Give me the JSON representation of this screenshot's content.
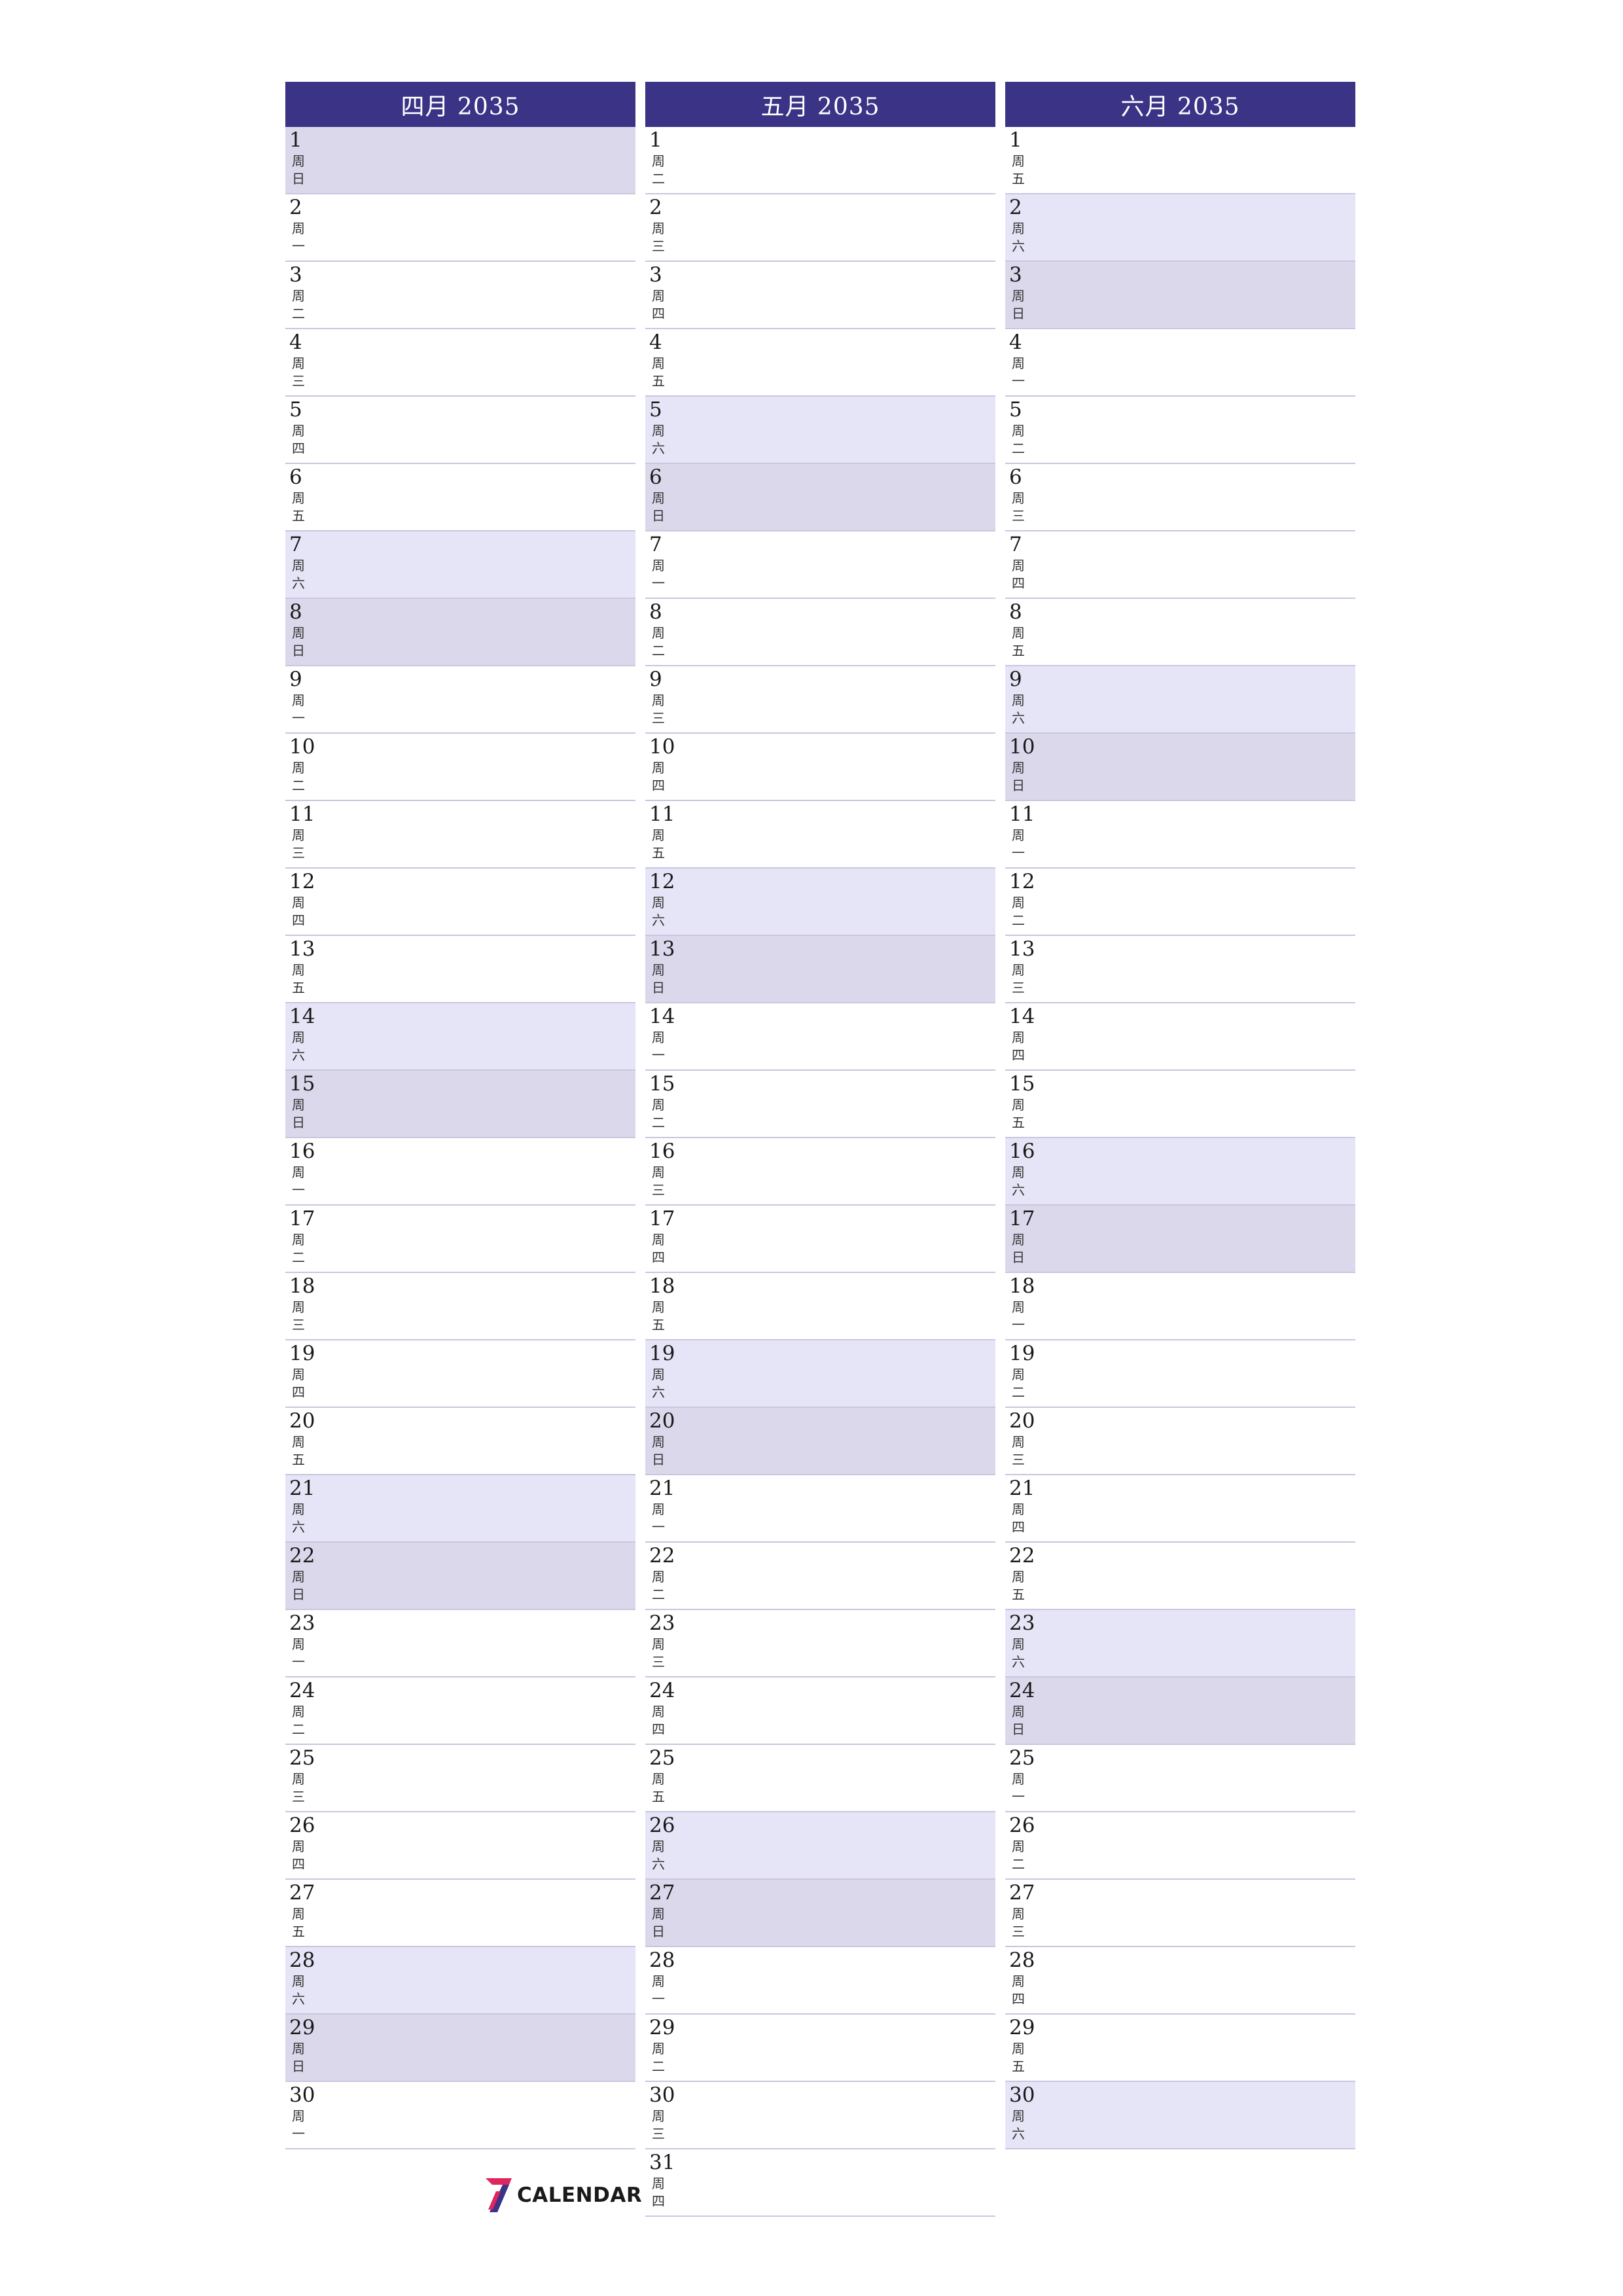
{
  "months": [
    {
      "title": "四月 2035",
      "days": [
        {
          "n": "1",
          "w": "日",
          "t": "sun"
        },
        {
          "n": "2",
          "w": "一",
          "t": ""
        },
        {
          "n": "3",
          "w": "二",
          "t": ""
        },
        {
          "n": "4",
          "w": "三",
          "t": ""
        },
        {
          "n": "5",
          "w": "四",
          "t": ""
        },
        {
          "n": "6",
          "w": "五",
          "t": ""
        },
        {
          "n": "7",
          "w": "六",
          "t": "sat"
        },
        {
          "n": "8",
          "w": "日",
          "t": "sun"
        },
        {
          "n": "9",
          "w": "一",
          "t": ""
        },
        {
          "n": "10",
          "w": "二",
          "t": ""
        },
        {
          "n": "11",
          "w": "三",
          "t": ""
        },
        {
          "n": "12",
          "w": "四",
          "t": ""
        },
        {
          "n": "13",
          "w": "五",
          "t": ""
        },
        {
          "n": "14",
          "w": "六",
          "t": "sat"
        },
        {
          "n": "15",
          "w": "日",
          "t": "sun"
        },
        {
          "n": "16",
          "w": "一",
          "t": ""
        },
        {
          "n": "17",
          "w": "二",
          "t": ""
        },
        {
          "n": "18",
          "w": "三",
          "t": ""
        },
        {
          "n": "19",
          "w": "四",
          "t": ""
        },
        {
          "n": "20",
          "w": "五",
          "t": ""
        },
        {
          "n": "21",
          "w": "六",
          "t": "sat"
        },
        {
          "n": "22",
          "w": "日",
          "t": "sun"
        },
        {
          "n": "23",
          "w": "一",
          "t": ""
        },
        {
          "n": "24",
          "w": "二",
          "t": ""
        },
        {
          "n": "25",
          "w": "三",
          "t": ""
        },
        {
          "n": "26",
          "w": "四",
          "t": ""
        },
        {
          "n": "27",
          "w": "五",
          "t": ""
        },
        {
          "n": "28",
          "w": "六",
          "t": "sat"
        },
        {
          "n": "29",
          "w": "日",
          "t": "sun"
        },
        {
          "n": "30",
          "w": "一",
          "t": ""
        }
      ]
    },
    {
      "title": "五月 2035",
      "days": [
        {
          "n": "1",
          "w": "二",
          "t": ""
        },
        {
          "n": "2",
          "w": "三",
          "t": ""
        },
        {
          "n": "3",
          "w": "四",
          "t": ""
        },
        {
          "n": "4",
          "w": "五",
          "t": ""
        },
        {
          "n": "5",
          "w": "六",
          "t": "sat"
        },
        {
          "n": "6",
          "w": "日",
          "t": "sun"
        },
        {
          "n": "7",
          "w": "一",
          "t": ""
        },
        {
          "n": "8",
          "w": "二",
          "t": ""
        },
        {
          "n": "9",
          "w": "三",
          "t": ""
        },
        {
          "n": "10",
          "w": "四",
          "t": ""
        },
        {
          "n": "11",
          "w": "五",
          "t": ""
        },
        {
          "n": "12",
          "w": "六",
          "t": "sat"
        },
        {
          "n": "13",
          "w": "日",
          "t": "sun"
        },
        {
          "n": "14",
          "w": "一",
          "t": ""
        },
        {
          "n": "15",
          "w": "二",
          "t": ""
        },
        {
          "n": "16",
          "w": "三",
          "t": ""
        },
        {
          "n": "17",
          "w": "四",
          "t": ""
        },
        {
          "n": "18",
          "w": "五",
          "t": ""
        },
        {
          "n": "19",
          "w": "六",
          "t": "sat"
        },
        {
          "n": "20",
          "w": "日",
          "t": "sun"
        },
        {
          "n": "21",
          "w": "一",
          "t": ""
        },
        {
          "n": "22",
          "w": "二",
          "t": ""
        },
        {
          "n": "23",
          "w": "三",
          "t": ""
        },
        {
          "n": "24",
          "w": "四",
          "t": ""
        },
        {
          "n": "25",
          "w": "五",
          "t": ""
        },
        {
          "n": "26",
          "w": "六",
          "t": "sat"
        },
        {
          "n": "27",
          "w": "日",
          "t": "sun"
        },
        {
          "n": "28",
          "w": "一",
          "t": ""
        },
        {
          "n": "29",
          "w": "二",
          "t": ""
        },
        {
          "n": "30",
          "w": "三",
          "t": ""
        },
        {
          "n": "31",
          "w": "四",
          "t": ""
        }
      ]
    },
    {
      "title": "六月 2035",
      "days": [
        {
          "n": "1",
          "w": "五",
          "t": ""
        },
        {
          "n": "2",
          "w": "六",
          "t": "sat"
        },
        {
          "n": "3",
          "w": "日",
          "t": "sun"
        },
        {
          "n": "4",
          "w": "一",
          "t": ""
        },
        {
          "n": "5",
          "w": "二",
          "t": ""
        },
        {
          "n": "6",
          "w": "三",
          "t": ""
        },
        {
          "n": "7",
          "w": "四",
          "t": ""
        },
        {
          "n": "8",
          "w": "五",
          "t": ""
        },
        {
          "n": "9",
          "w": "六",
          "t": "sat"
        },
        {
          "n": "10",
          "w": "日",
          "t": "sun"
        },
        {
          "n": "11",
          "w": "一",
          "t": ""
        },
        {
          "n": "12",
          "w": "二",
          "t": ""
        },
        {
          "n": "13",
          "w": "三",
          "t": ""
        },
        {
          "n": "14",
          "w": "四",
          "t": ""
        },
        {
          "n": "15",
          "w": "五",
          "t": ""
        },
        {
          "n": "16",
          "w": "六",
          "t": "sat"
        },
        {
          "n": "17",
          "w": "日",
          "t": "sun"
        },
        {
          "n": "18",
          "w": "一",
          "t": ""
        },
        {
          "n": "19",
          "w": "二",
          "t": ""
        },
        {
          "n": "20",
          "w": "三",
          "t": ""
        },
        {
          "n": "21",
          "w": "四",
          "t": ""
        },
        {
          "n": "22",
          "w": "五",
          "t": ""
        },
        {
          "n": "23",
          "w": "六",
          "t": "sat"
        },
        {
          "n": "24",
          "w": "日",
          "t": "sun"
        },
        {
          "n": "25",
          "w": "一",
          "t": ""
        },
        {
          "n": "26",
          "w": "二",
          "t": ""
        },
        {
          "n": "27",
          "w": "三",
          "t": ""
        },
        {
          "n": "28",
          "w": "四",
          "t": ""
        },
        {
          "n": "29",
          "w": "五",
          "t": ""
        },
        {
          "n": "30",
          "w": "六",
          "t": "sat"
        }
      ]
    }
  ],
  "weekday_prefix": "周",
  "logo": {
    "mark": "7",
    "text": "CALENDAR",
    "mark_color": "#e0245e",
    "mark_color_2": "#3a3386"
  },
  "colors": {
    "header": "#3a3386",
    "saturday": "#e5e5f7",
    "sunday": "#dcd8ec",
    "divider": "#c9c6de"
  }
}
